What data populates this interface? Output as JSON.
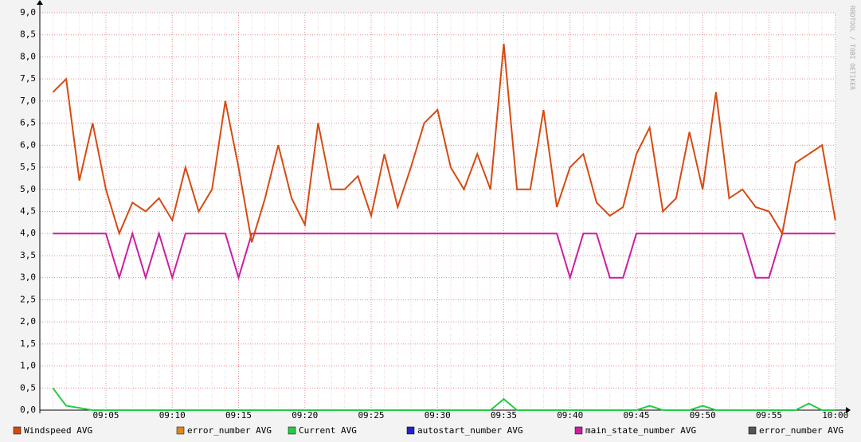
{
  "chart_data": {
    "type": "line",
    "watermark": "RRDTOOL / TOBI OETIKER",
    "categories": [
      null,
      null,
      null,
      null,
      "09:05",
      null,
      null,
      null,
      null,
      "09:10",
      null,
      null,
      null,
      null,
      "09:15",
      null,
      null,
      null,
      null,
      "09:20",
      null,
      null,
      null,
      null,
      "09:25",
      null,
      null,
      null,
      null,
      "09:30",
      null,
      null,
      null,
      null,
      "09:35",
      null,
      null,
      null,
      null,
      "09:40",
      null,
      null,
      null,
      null,
      "09:45",
      null,
      null,
      null,
      null,
      "09:50",
      null,
      null,
      null,
      null,
      "09:55",
      null,
      null,
      null,
      null,
      "10:00"
    ],
    "ylim": [
      0,
      9
    ],
    "yticks": [
      {
        "value": 0,
        "label": "0,0"
      },
      {
        "value": 0.5,
        "label": "0,5"
      },
      {
        "value": 1,
        "label": "1,0"
      },
      {
        "value": 1.5,
        "label": "1,5"
      },
      {
        "value": 2,
        "label": "2,0"
      },
      {
        "value": 2.5,
        "label": "2,5"
      },
      {
        "value": 3,
        "label": "3,0"
      },
      {
        "value": 3.5,
        "label": "3,5"
      },
      {
        "value": 4,
        "label": "4,0"
      },
      {
        "value": 4.5,
        "label": "4,5"
      },
      {
        "value": 5,
        "label": "5,0"
      },
      {
        "value": 5.5,
        "label": "5,5"
      },
      {
        "value": 6,
        "label": "6,0"
      },
      {
        "value": 6.5,
        "label": "6,5"
      },
      {
        "value": 7,
        "label": "7,0"
      },
      {
        "value": 7.5,
        "label": "7,5"
      },
      {
        "value": 8,
        "label": "8,0"
      },
      {
        "value": 8.5,
        "label": "8,5"
      },
      {
        "value": 9,
        "label": "9,0"
      }
    ],
    "grid": true,
    "series": [
      {
        "name": "Windspeed AVG",
        "color": "#d64a12",
        "values": [
          7.2,
          7.5,
          5.2,
          6.5,
          5.0,
          4.0,
          4.7,
          4.5,
          4.8,
          4.3,
          5.5,
          4.5,
          5.0,
          7.0,
          5.5,
          3.8,
          4.8,
          6.0,
          4.8,
          4.2,
          6.5,
          5.0,
          5.0,
          5.3,
          4.4,
          5.8,
          4.6,
          5.5,
          6.5,
          6.8,
          5.5,
          5.0,
          5.8,
          5.0,
          8.3,
          5.0,
          5.0,
          6.8,
          4.6,
          5.5,
          5.8,
          4.7,
          4.4,
          4.6,
          5.8,
          6.4,
          4.5,
          4.8,
          6.3,
          5.0,
          7.2,
          4.8,
          5.0,
          4.6,
          4.5,
          4.0,
          5.6,
          5.8,
          6.0,
          4.3
        ]
      },
      {
        "name": "error_number AVG",
        "color": "#e8831a",
        "values": [
          null,
          null,
          null,
          null,
          null,
          null,
          null,
          null,
          null,
          null,
          null,
          null,
          null,
          null,
          null,
          null,
          null,
          null,
          null,
          null,
          null,
          null,
          null,
          null,
          null,
          null,
          null,
          null,
          null,
          null,
          null,
          null,
          null,
          null,
          null,
          null,
          null,
          null,
          null,
          null,
          null,
          null,
          null,
          null,
          null,
          null,
          null,
          null,
          null,
          null,
          null,
          null,
          null,
          null,
          null,
          null,
          null,
          null,
          null,
          null
        ]
      },
      {
        "name": "Current AVG",
        "color": "#22cc44",
        "values": [
          0.5,
          0.1,
          0.05,
          0,
          0,
          0,
          0,
          0,
          0,
          0,
          0,
          0,
          0,
          0,
          0,
          0,
          0,
          0,
          0,
          0,
          0,
          0,
          0,
          0,
          0,
          0,
          0,
          0,
          0,
          0,
          0,
          0,
          0,
          0,
          0.25,
          0,
          0,
          0,
          0,
          0,
          0,
          0,
          0,
          0,
          0,
          0.1,
          0,
          0,
          0,
          0.1,
          0,
          0,
          0,
          0,
          0,
          0,
          0,
          0.15,
          0,
          0
        ]
      },
      {
        "name": "autostart_number AVG",
        "color": "#2222cc",
        "values": [
          null,
          null,
          null,
          null,
          null,
          null,
          null,
          null,
          null,
          null,
          null,
          null,
          null,
          null,
          null,
          null,
          null,
          null,
          null,
          null,
          null,
          null,
          null,
          null,
          null,
          null,
          null,
          null,
          null,
          null,
          null,
          null,
          null,
          null,
          null,
          null,
          null,
          null,
          null,
          null,
          null,
          null,
          null,
          null,
          null,
          null,
          null,
          null,
          null,
          null,
          null,
          null,
          null,
          null,
          null,
          null,
          null,
          null,
          null,
          null
        ]
      },
      {
        "name": "main_state_number AVG",
        "color": "#cc1ea0",
        "values": [
          4,
          4,
          4,
          4,
          4,
          3,
          4,
          3,
          4,
          3,
          4,
          4,
          4,
          4,
          3,
          4,
          4,
          4,
          4,
          4,
          4,
          4,
          4,
          4,
          4,
          4,
          4,
          4,
          4,
          4,
          4,
          4,
          4,
          4,
          4,
          4,
          4,
          4,
          4,
          3,
          4,
          4,
          3,
          3,
          4,
          4,
          4,
          4,
          4,
          4,
          4,
          4,
          4,
          3,
          3,
          4,
          4,
          4,
          4,
          4
        ]
      },
      {
        "name": "error_number AVG",
        "color": "#555555",
        "values": [
          null,
          null,
          null,
          null,
          null,
          null,
          null,
          null,
          null,
          null,
          null,
          null,
          null,
          null,
          null,
          null,
          null,
          null,
          null,
          null,
          null,
          null,
          null,
          null,
          null,
          null,
          null,
          null,
          null,
          null,
          null,
          null,
          null,
          null,
          null,
          null,
          null,
          null,
          null,
          null,
          null,
          null,
          null,
          null,
          null,
          null,
          null,
          null,
          null,
          null,
          null,
          null,
          null,
          null,
          null,
          null,
          null,
          null,
          null,
          null
        ]
      }
    ]
  }
}
